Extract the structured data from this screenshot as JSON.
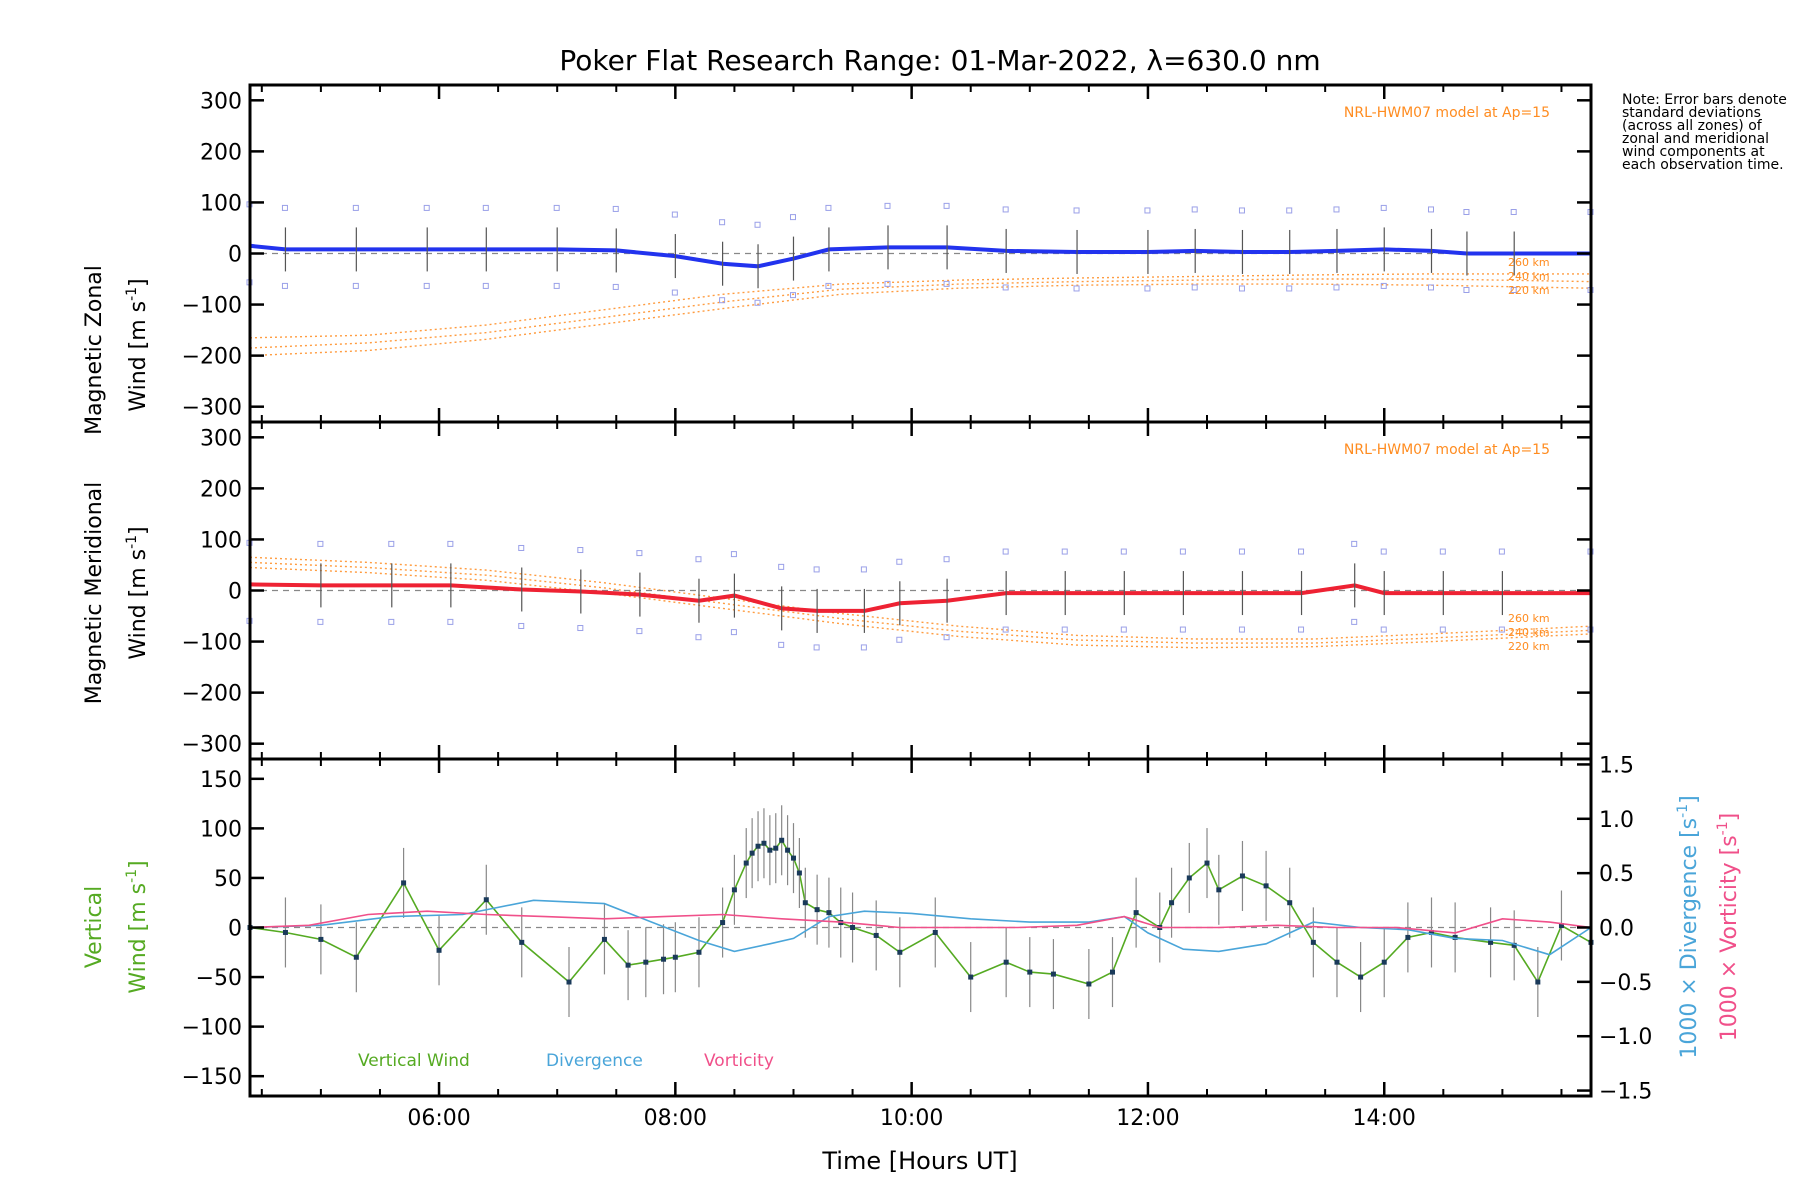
{
  "chart_data": {
    "type": "line",
    "title": "Poker Flat Research Range: 01-Mar-2022, λ=630.0 nm",
    "note": "Note: Error bars denote standard deviations (across all zones) of zonal and meridional wind components at each observation time.",
    "xlabel": "Time [Hours UT]",
    "xlim": [
      4.4,
      15.75
    ],
    "x_ticks": [
      6,
      8,
      10,
      12,
      14
    ],
    "x_tick_labels": [
      "06:00",
      "08:00",
      "10:00",
      "12:00",
      "14:00"
    ],
    "panels": [
      {
        "name": "zonal",
        "ylabel_line1": "Magnetic Zonal",
        "ylabel_line2": "Wind [m s",
        "ylabel_sup": "-1",
        "ylabel_close": "]",
        "ylim": [
          -330,
          330
        ],
        "y_ticks": [
          -300,
          -200,
          -100,
          0,
          100,
          200,
          300
        ],
        "model_label": "NRL-HWM07 model at Ap=15",
        "altitude_labels": [
          "260 km",
          "240 km",
          "220 km"
        ],
        "series": [
          {
            "name": "Magnetic Zonal Wind",
            "color": "#2233ee",
            "x": [
              4.4,
              4.7,
              5.3,
              5.9,
              6.4,
              7.0,
              7.5,
              8.0,
              8.4,
              8.7,
              9.0,
              9.3,
              9.8,
              10.3,
              10.8,
              11.4,
              12.0,
              12.4,
              12.8,
              13.2,
              13.6,
              14.0,
              14.4,
              14.7,
              15.1,
              15.75
            ],
            "y": [
              15,
              8,
              8,
              8,
              8,
              8,
              6,
              -5,
              -20,
              -25,
              -10,
              8,
              12,
              12,
              5,
              3,
              3,
              5,
              3,
              3,
              5,
              8,
              5,
              0,
              0,
              0
            ]
          },
          {
            "name": "HWM07 260 km",
            "color": "#ff9c40",
            "x": [
              4.4,
              5.4,
              6.4,
              7.4,
              8.4,
              9.4,
              10.4,
              11.4,
              12.4,
              13.4,
              14.4,
              15.75
            ],
            "y": [
              -165,
              -160,
              -140,
              -110,
              -80,
              -60,
              -52,
              -48,
              -45,
              -42,
              -40,
              -40
            ]
          },
          {
            "name": "HWM07 240 km",
            "color": "#ff9c40",
            "x": [
              4.4,
              5.4,
              6.4,
              7.4,
              8.4,
              9.4,
              10.4,
              11.4,
              12.4,
              13.4,
              14.4,
              15.75
            ],
            "y": [
              -185,
              -175,
              -155,
              -125,
              -95,
              -70,
              -60,
              -55,
              -52,
              -50,
              -50,
              -55
            ]
          },
          {
            "name": "HWM07 220 km",
            "color": "#ff9c40",
            "x": [
              4.4,
              5.4,
              6.4,
              7.4,
              8.4,
              9.4,
              10.4,
              11.4,
              12.4,
              13.4,
              14.4,
              15.75
            ],
            "y": [
              -200,
              -190,
              -168,
              -138,
              -108,
              -80,
              -68,
              -62,
              -60,
              -60,
              -62,
              -68
            ]
          }
        ]
      },
      {
        "name": "meridional",
        "ylabel_line1": "Magnetic Meridional",
        "ylabel_line2": "Wind [m s",
        "ylabel_sup": "-1",
        "ylabel_close": "]",
        "ylim": [
          -330,
          330
        ],
        "y_ticks": [
          -300,
          -200,
          -100,
          0,
          100,
          200,
          300
        ],
        "model_label": "NRL-HWM07 model at Ap=15",
        "altitude_labels": [
          "260 km",
          "240 km",
          "220 km"
        ],
        "series": [
          {
            "name": "Magnetic Meridional Wind",
            "color": "#ee2233",
            "x": [
              4.4,
              5.0,
              5.6,
              6.1,
              6.7,
              7.2,
              7.7,
              8.2,
              8.5,
              8.9,
              9.2,
              9.6,
              9.9,
              10.3,
              10.8,
              11.3,
              11.8,
              12.3,
              12.8,
              13.3,
              13.75,
              14.0,
              14.5,
              15.0,
              15.75
            ],
            "y": [
              12,
              10,
              10,
              10,
              2,
              -2,
              -8,
              -20,
              -10,
              -35,
              -40,
              -40,
              -25,
              -20,
              -5,
              -5,
              -5,
              -5,
              -5,
              -5,
              10,
              -5,
              -5,
              -5,
              -5
            ]
          },
          {
            "name": "HWM07 260 km",
            "color": "#ff9c40",
            "x": [
              4.4,
              5.4,
              6.4,
              7.4,
              8.4,
              9.4,
              10.4,
              11.4,
              12.4,
              13.4,
              14.4,
              15.75
            ],
            "y": [
              65,
              55,
              40,
              15,
              -15,
              -45,
              -70,
              -88,
              -95,
              -95,
              -85,
              -70
            ]
          },
          {
            "name": "HWM07 240 km",
            "color": "#ff9c40",
            "x": [
              4.4,
              5.4,
              6.4,
              7.4,
              8.4,
              9.4,
              10.4,
              11.4,
              12.4,
              13.4,
              14.4,
              15.75
            ],
            "y": [
              55,
              45,
              30,
              5,
              -25,
              -55,
              -80,
              -97,
              -103,
              -103,
              -93,
              -78
            ]
          },
          {
            "name": "HWM07 220 km",
            "color": "#ff9c40",
            "x": [
              4.4,
              5.4,
              6.4,
              7.4,
              8.4,
              9.4,
              10.4,
              11.4,
              12.4,
              13.4,
              14.4,
              15.75
            ],
            "y": [
              45,
              35,
              20,
              -5,
              -35,
              -65,
              -90,
              -107,
              -112,
              -110,
              -100,
              -85
            ]
          }
        ]
      },
      {
        "name": "vertical",
        "ylabel_line1": "Vertical",
        "ylabel_line2": "Wind [m s",
        "ylabel_sup": "-1",
        "ylabel_close": "]",
        "ylim": [
          -170,
          170
        ],
        "y_ticks": [
          -150,
          -100,
          -50,
          0,
          50,
          100,
          150
        ],
        "right_axis": {
          "ylim": [
            -1.55,
            1.55
          ],
          "y_ticks": [
            -1.5,
            -1.0,
            -0.5,
            0.0,
            0.5,
            1.0,
            1.5
          ],
          "label_divergence": "1000 × Divergence [s",
          "label_vorticity": "1000 × Vorticity [s",
          "sup": "-1",
          "close": "]"
        },
        "legend": [
          "Vertical Wind",
          "Divergence",
          "Vorticity"
        ],
        "series": [
          {
            "name": "Vertical Wind",
            "color": "#55aa22",
            "x": [
              4.4,
              4.7,
              5.0,
              5.3,
              5.7,
              6.0,
              6.4,
              6.7,
              7.1,
              7.4,
              7.6,
              7.75,
              7.9,
              8.0,
              8.2,
              8.4,
              8.5,
              8.6,
              8.65,
              8.7,
              8.75,
              8.8,
              8.85,
              8.9,
              8.95,
              9.0,
              9.05,
              9.1,
              9.2,
              9.3,
              9.4,
              9.5,
              9.7,
              9.9,
              10.2,
              10.5,
              10.8,
              11.0,
              11.2,
              11.5,
              11.7,
              11.9,
              12.1,
              12.2,
              12.35,
              12.5,
              12.6,
              12.8,
              13.0,
              13.2,
              13.4,
              13.6,
              13.8,
              14.0,
              14.2,
              14.4,
              14.6,
              14.9,
              15.1,
              15.3,
              15.5,
              15.75
            ],
            "y": [
              0,
              -5,
              -12,
              -30,
              45,
              -23,
              28,
              -15,
              -55,
              -12,
              -38,
              -35,
              -32,
              -30,
              -25,
              5,
              38,
              65,
              75,
              82,
              85,
              78,
              80,
              88,
              78,
              70,
              55,
              25,
              18,
              15,
              5,
              0,
              -8,
              -25,
              -5,
              -50,
              -35,
              -45,
              -47,
              -57,
              -45,
              15,
              0,
              25,
              50,
              65,
              38,
              52,
              42,
              25,
              -15,
              -35,
              -50,
              -35,
              -10,
              -5,
              -10,
              -15,
              -18,
              -55,
              2,
              -15
            ]
          },
          {
            "name": "Divergence",
            "color": "#4aa5d9",
            "axis": "right",
            "x": [
              4.4,
              5.0,
              5.6,
              6.2,
              6.8,
              7.4,
              7.8,
              8.2,
              8.5,
              8.8,
              9.0,
              9.3,
              9.6,
              10.0,
              10.5,
              11.0,
              11.5,
              11.8,
              12.0,
              12.3,
              12.6,
              13.0,
              13.4,
              13.8,
              14.2,
              14.6,
              15.0,
              15.4,
              15.75
            ],
            "y": [
              0.0,
              0.02,
              0.1,
              0.12,
              0.25,
              0.22,
              0.05,
              -0.12,
              -0.22,
              -0.15,
              -0.1,
              0.1,
              0.15,
              0.13,
              0.08,
              0.05,
              0.05,
              0.1,
              -0.05,
              -0.2,
              -0.22,
              -0.15,
              0.05,
              0.0,
              -0.02,
              -0.1,
              -0.12,
              -0.25,
              0.0
            ]
          },
          {
            "name": "Vorticity",
            "color": "#f0508a",
            "axis": "right",
            "x": [
              4.4,
              4.9,
              5.4,
              5.9,
              6.4,
              6.9,
              7.4,
              7.9,
              8.4,
              8.9,
              9.4,
              9.9,
              10.4,
              10.9,
              11.4,
              11.8,
              12.1,
              12.6,
              13.1,
              13.6,
              14.1,
              14.6,
              15.0,
              15.4,
              15.75
            ],
            "y": [
              0.0,
              0.02,
              0.12,
              0.15,
              0.12,
              0.1,
              0.08,
              0.1,
              0.12,
              0.08,
              0.05,
              0.0,
              0.0,
              0.0,
              0.02,
              0.1,
              0.0,
              0.0,
              0.02,
              0.0,
              0.0,
              -0.05,
              0.08,
              0.05,
              0.0
            ]
          }
        ]
      }
    ]
  }
}
